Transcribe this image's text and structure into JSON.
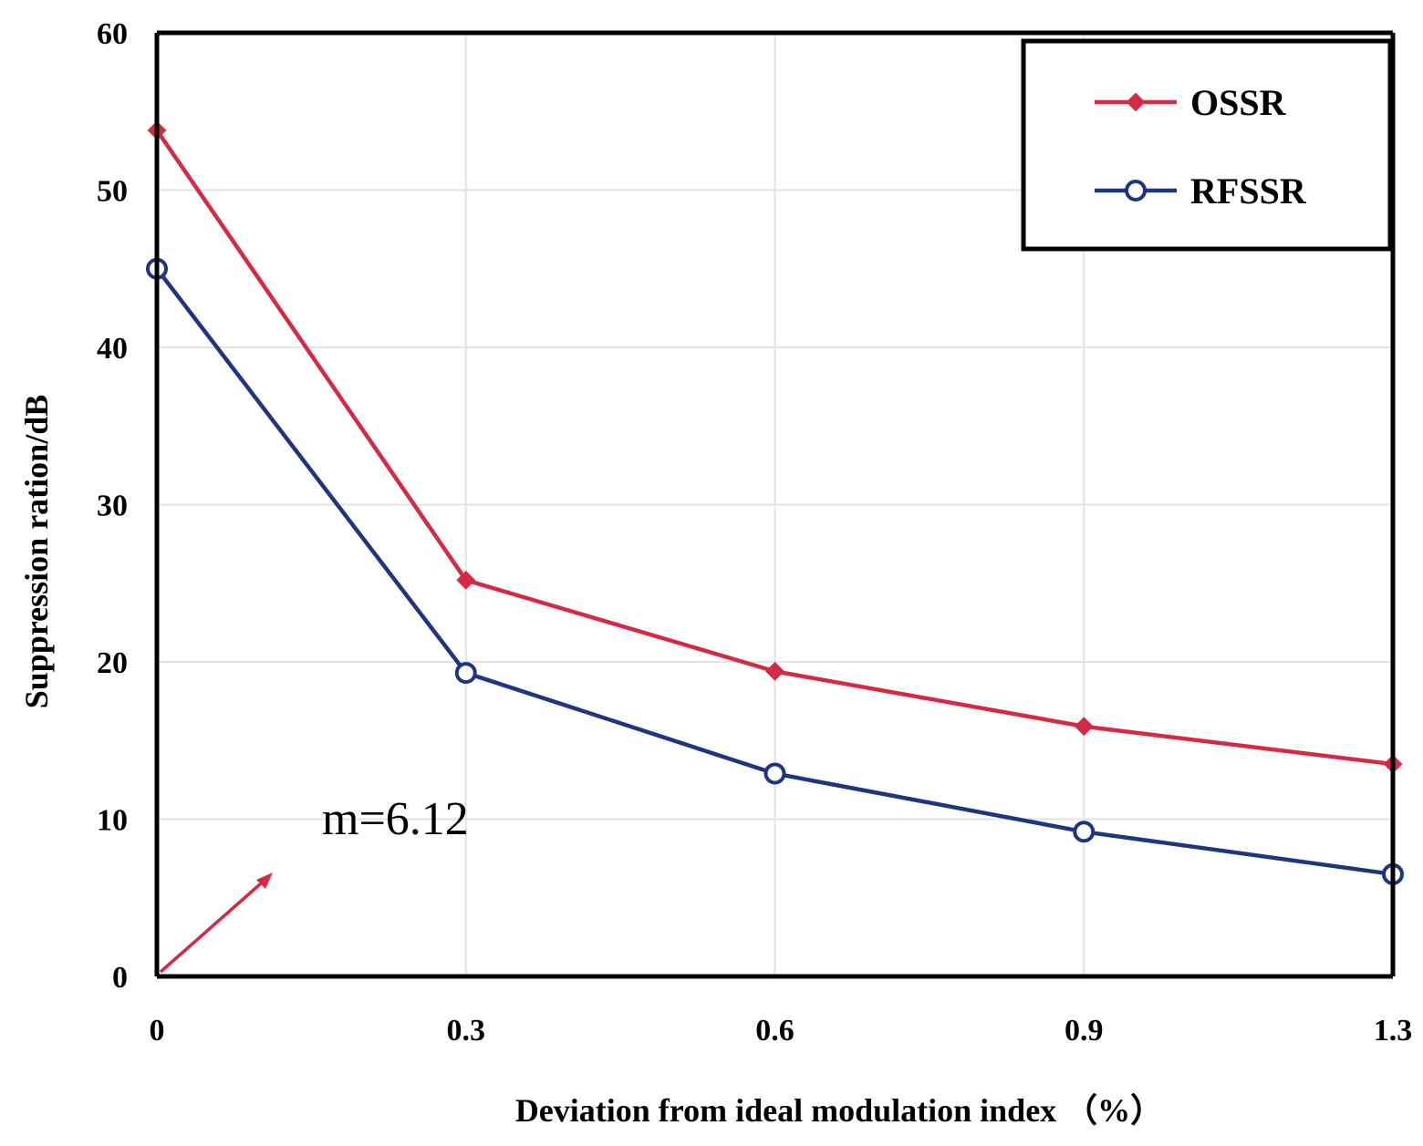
{
  "chart_data": {
    "type": "line",
    "title": "",
    "xlabel": "Deviation from ideal modulation index （%）",
    "ylabel": "Suppression ration/dB",
    "categories": [
      "0",
      "0.3",
      "0.6",
      "0.9",
      "1.3"
    ],
    "ylim": [
      0,
      60
    ],
    "yticks": [
      "0",
      "10",
      "20",
      "30",
      "40",
      "50",
      "60"
    ],
    "yticks_values": [
      0,
      10,
      20,
      30,
      40,
      50,
      60
    ],
    "grid": true,
    "legend_position": "top-right",
    "series": [
      {
        "name": "OSSR",
        "values": [
          53.8,
          25.2,
          19.4,
          15.9,
          13.5
        ],
        "color": "#d42a45",
        "marker": "diamond"
      },
      {
        "name": "RFSSR",
        "values": [
          45.0,
          19.3,
          12.9,
          9.2,
          6.5
        ],
        "color": "#1f3580",
        "marker": "circle"
      }
    ],
    "annotations": [
      {
        "text": "m=6.12",
        "color": "#000000"
      }
    ],
    "arrow_color": "#d42a45"
  }
}
